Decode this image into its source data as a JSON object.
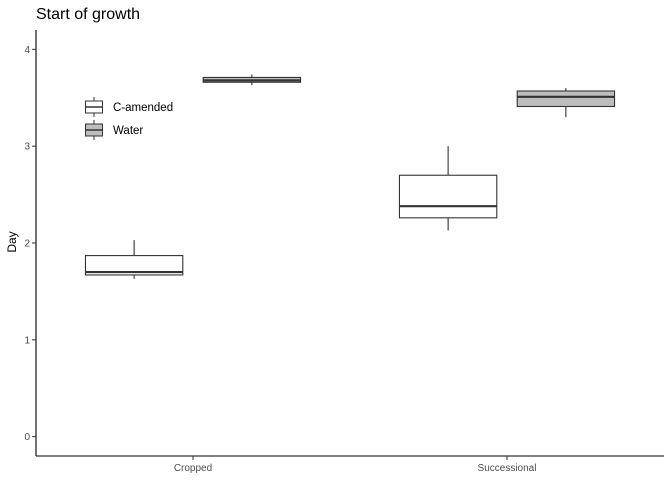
{
  "chart_data": {
    "type": "boxplot",
    "title": "Start of growth",
    "xlabel": "",
    "ylabel": "Day",
    "categories": [
      "Cropped",
      "Successional"
    ],
    "ylim": [
      -0.2,
      4.2
    ],
    "yticks": [
      0,
      1,
      2,
      3,
      4
    ],
    "grid": false,
    "legend_position": "top-left",
    "series": [
      {
        "name": "C-amended",
        "fill": "#ffffff",
        "boxes": [
          {
            "category": "Cropped",
            "min": 1.63,
            "q1": 1.67,
            "median": 1.7,
            "q3": 1.87,
            "max": 2.03
          },
          {
            "category": "Successional",
            "min": 2.13,
            "q1": 2.26,
            "median": 2.38,
            "q3": 2.7,
            "max": 3.0
          }
        ]
      },
      {
        "name": "Water",
        "fill": "#bdbdbd",
        "boxes": [
          {
            "category": "Cropped",
            "min": 3.63,
            "q1": 3.66,
            "median": 3.68,
            "q3": 3.71,
            "max": 3.74
          },
          {
            "category": "Successional",
            "min": 3.3,
            "q1": 3.41,
            "median": 3.51,
            "q3": 3.57,
            "max": 3.6
          }
        ]
      }
    ]
  }
}
